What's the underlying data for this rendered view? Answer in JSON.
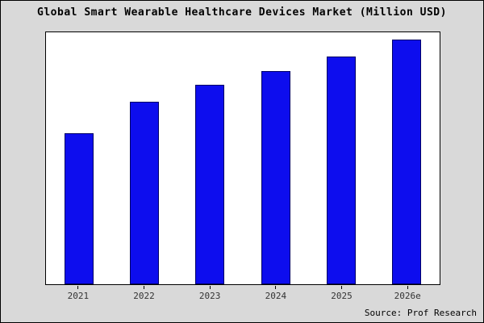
{
  "title": "Global Smart Wearable Healthcare Devices Market (Million USD)",
  "source": "Source: Prof Research",
  "colors": {
    "bar_fill": "#0d0dee",
    "bar_edge": "#000066",
    "frame_background": "#d9d9d9",
    "plot_background": "#ffffff",
    "axis_border": "#000000",
    "tick_label": "#333333"
  },
  "chart_data": {
    "type": "bar",
    "title": "Global Smart Wearable Healthcare Devices Market (Million USD)",
    "categories": [
      "2021",
      "2022",
      "2023",
      "2024",
      "2025",
      "2026e"
    ],
    "values": [
      63,
      76,
      83,
      89,
      95,
      102
    ],
    "xlabel": "",
    "ylabel": "",
    "ylim": [
      0,
      105
    ],
    "grid": false,
    "legend": false,
    "y_axis_labels_visible": false,
    "source": "Source: Prof Research"
  }
}
